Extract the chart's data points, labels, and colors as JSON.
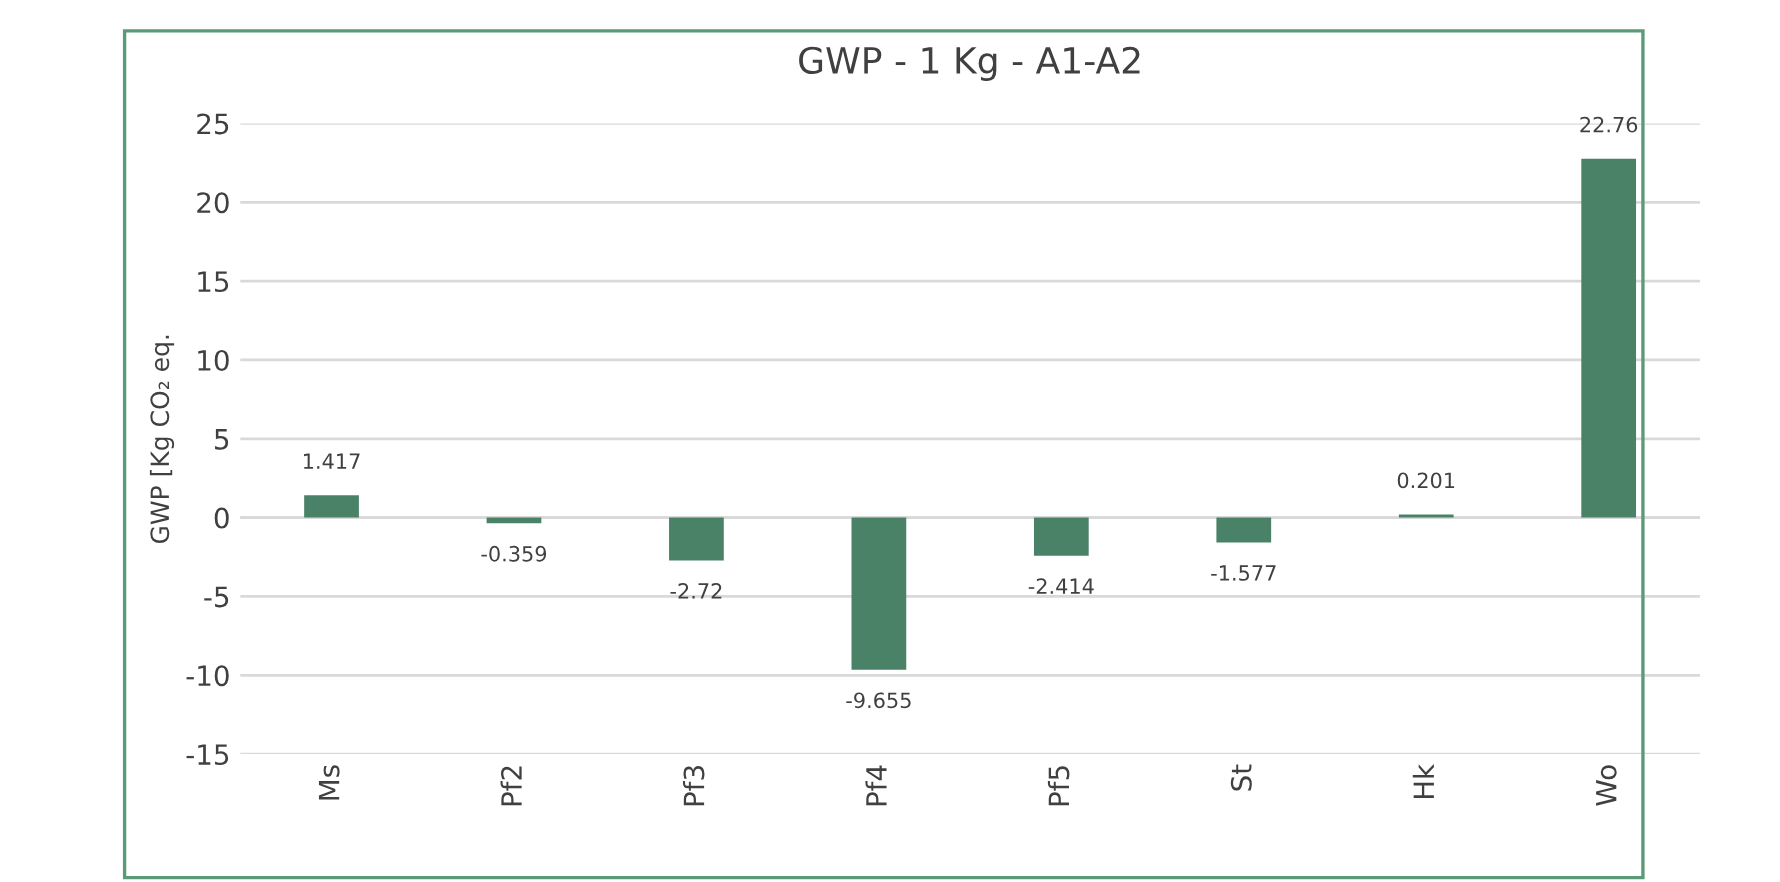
{
  "chart_data": {
    "type": "bar",
    "title": "GWP - 1 Kg - A1-A2",
    "ylabel": "GWP [Kg CO₂ eq.",
    "categories": [
      "Ms",
      "Pf2",
      "Pf3",
      "Pf4",
      "Pf5",
      "St",
      "Hk",
      "Wo"
    ],
    "values": [
      1.417,
      -0.359,
      -2.72,
      -9.655,
      -2.414,
      -1.577,
      0.201,
      22.76
    ],
    "color": "#4a8268",
    "ylim": [
      -15,
      25
    ],
    "yticks": [
      -15,
      -10,
      -5,
      0,
      5,
      10,
      15,
      20,
      25
    ],
    "grid": "y",
    "data_labels": true
  }
}
